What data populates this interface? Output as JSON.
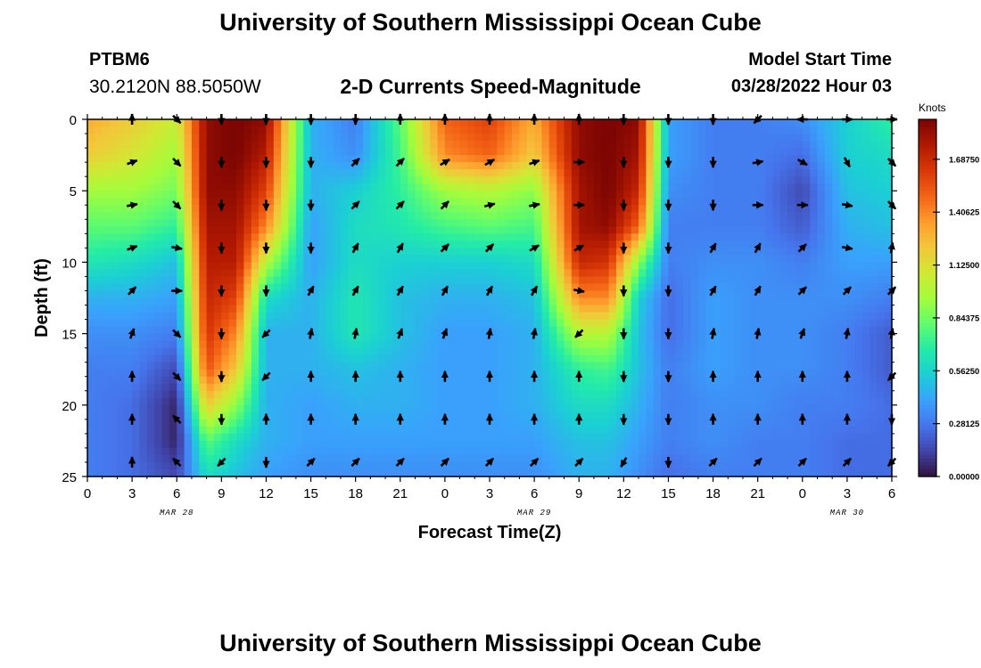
{
  "header": {
    "title": "University of Southern Mississippi Ocean Cube",
    "station": "PTBM6",
    "coords": "30.2120N  88.5050W",
    "subtitle": "2-D Currents Speed-Magnitude",
    "model_start_label": "Model Start Time",
    "model_start_value": "03/28/2022 Hour 03"
  },
  "footer": {
    "title": "University of Southern Mississippi Ocean Cube"
  },
  "chart_data": {
    "type": "heatmap",
    "title": "2-D Currents Speed-Magnitude",
    "xlabel": "Forecast Time(Z)",
    "ylabel": "Depth (ft)",
    "x_ticks": [
      "0",
      "3",
      "6",
      "9",
      "12",
      "15",
      "18",
      "21",
      "0",
      "3",
      "6",
      "9",
      "12",
      "15",
      "18",
      "21",
      "0",
      "3",
      "6"
    ],
    "y_ticks": [
      "0",
      "5",
      "10",
      "15",
      "20",
      "25"
    ],
    "date_labels": [
      {
        "text": "MAR 28",
        "hour_index": 6
      },
      {
        "text": "MAR 29",
        "hour_index": 30
      },
      {
        "text": "MAR 30",
        "hour_index": 51
      }
    ],
    "hour_range": [
      0,
      54
    ],
    "ylim": [
      0,
      25
    ],
    "colorbar": {
      "label": "Knots",
      "range": [
        0,
        1.9
      ],
      "ticks": [
        "1.68750",
        "1.40625",
        "1.12500",
        "0.84375",
        "0.56250",
        "0.28125",
        "0.00000"
      ],
      "tick_values": [
        1.6875,
        1.40625,
        1.125,
        0.84375,
        0.5625,
        0.28125,
        0.0
      ],
      "colors": [
        "#30123b",
        "#4145ab",
        "#4675ed",
        "#39a2fc",
        "#1bcfd4",
        "#24eca6",
        "#61fc6c",
        "#a4fc3b",
        "#d1e834",
        "#f3c63a",
        "#fe9b2d",
        "#f36315",
        "#d93807",
        "#b11901",
        "#7a0403"
      ]
    },
    "speed_depth_grid": [
      0,
      2.5,
      5,
      7.5,
      10,
      12.5,
      15,
      17.5,
      20,
      22.5,
      25
    ],
    "speed_hour_grid": [
      0,
      3,
      6,
      8,
      10,
      12,
      15,
      18,
      21,
      24,
      27,
      30,
      33,
      35,
      37,
      39,
      42,
      45,
      48,
      51,
      54
    ],
    "speed": [
      [
        1.3,
        1.2,
        1.05,
        1.85,
        1.9,
        1.85,
        0.45,
        0.3,
        0.8,
        1.5,
        1.6,
        1.3,
        1.85,
        1.9,
        1.85,
        0.4,
        0.3,
        0.3,
        0.35,
        0.55,
        0.7
      ],
      [
        1.2,
        1.1,
        0.95,
        1.85,
        1.9,
        1.75,
        0.45,
        0.35,
        0.75,
        1.4,
        1.5,
        1.2,
        1.85,
        1.9,
        1.8,
        0.4,
        0.3,
        0.3,
        0.25,
        0.55,
        0.6
      ],
      [
        0.95,
        0.95,
        0.85,
        1.85,
        1.85,
        1.6,
        0.45,
        0.55,
        0.7,
        0.95,
        1.0,
        0.9,
        1.8,
        1.9,
        1.7,
        0.35,
        0.3,
        0.3,
        0.15,
        0.5,
        0.55
      ],
      [
        0.8,
        0.8,
        0.7,
        1.8,
        1.8,
        1.4,
        0.4,
        0.6,
        0.65,
        0.75,
        0.8,
        0.75,
        1.8,
        1.85,
        1.5,
        0.3,
        0.3,
        0.3,
        0.2,
        0.45,
        0.5
      ],
      [
        0.65,
        0.6,
        0.5,
        1.75,
        1.75,
        1.0,
        0.4,
        0.6,
        0.55,
        0.55,
        0.55,
        0.6,
        1.7,
        1.65,
        0.9,
        0.3,
        0.35,
        0.35,
        0.3,
        0.4,
        0.4
      ],
      [
        0.45,
        0.45,
        0.4,
        1.7,
        1.6,
        0.6,
        0.45,
        0.65,
        0.5,
        0.45,
        0.45,
        0.5,
        1.4,
        1.4,
        0.55,
        0.25,
        0.4,
        0.35,
        0.35,
        0.35,
        0.3
      ],
      [
        0.35,
        0.35,
        0.3,
        1.65,
        1.4,
        0.45,
        0.45,
        0.65,
        0.5,
        0.4,
        0.4,
        0.45,
        1.0,
        1.0,
        0.5,
        0.25,
        0.4,
        0.35,
        0.35,
        0.3,
        0.2
      ],
      [
        0.3,
        0.3,
        0.15,
        1.55,
        1.2,
        0.45,
        0.45,
        0.5,
        0.45,
        0.4,
        0.4,
        0.45,
        0.7,
        0.75,
        0.5,
        0.3,
        0.4,
        0.35,
        0.35,
        0.3,
        0.2
      ],
      [
        0.3,
        0.25,
        0.05,
        1.2,
        0.9,
        0.45,
        0.4,
        0.45,
        0.45,
        0.4,
        0.4,
        0.45,
        0.6,
        0.6,
        0.45,
        0.3,
        0.35,
        0.35,
        0.3,
        0.3,
        0.25
      ],
      [
        0.3,
        0.25,
        0.05,
        0.8,
        0.6,
        0.45,
        0.4,
        0.4,
        0.4,
        0.4,
        0.4,
        0.4,
        0.5,
        0.5,
        0.4,
        0.3,
        0.35,
        0.3,
        0.3,
        0.25,
        0.25
      ],
      [
        0.3,
        0.25,
        0.15,
        0.6,
        0.5,
        0.4,
        0.35,
        0.35,
        0.35,
        0.35,
        0.35,
        0.35,
        0.45,
        0.45,
        0.35,
        0.25,
        0.3,
        0.3,
        0.3,
        0.25,
        0.25
      ]
    ],
    "vector_depths": [
      0,
      3,
      6,
      9,
      12,
      15,
      18,
      21,
      24
    ],
    "vector_hours": [
      3,
      6,
      9,
      12,
      15,
      18,
      21,
      24,
      27,
      30,
      33,
      36,
      39,
      42,
      45,
      48,
      51,
      54
    ],
    "vector_dirs_deg": [
      [
        0,
        135,
        180,
        180,
        180,
        180,
        0,
        0,
        0,
        0,
        0,
        180,
        180,
        180,
        225,
        270,
        90,
        90
      ],
      [
        70,
        135,
        180,
        180,
        180,
        45,
        45,
        60,
        60,
        70,
        90,
        180,
        180,
        180,
        80,
        120,
        150,
        135
      ],
      [
        80,
        135,
        180,
        180,
        180,
        45,
        45,
        45,
        75,
        80,
        90,
        180,
        180,
        180,
        90,
        90,
        100,
        135
      ],
      [
        70,
        100,
        180,
        180,
        180,
        30,
        30,
        45,
        45,
        60,
        60,
        180,
        180,
        30,
        30,
        45,
        100,
        10
      ],
      [
        45,
        90,
        180,
        180,
        30,
        30,
        30,
        30,
        30,
        30,
        100,
        180,
        180,
        30,
        30,
        45,
        45,
        45
      ],
      [
        20,
        135,
        180,
        225,
        10,
        10,
        20,
        20,
        10,
        10,
        225,
        180,
        180,
        10,
        10,
        20,
        10,
        10
      ],
      [
        0,
        135,
        180,
        225,
        0,
        0,
        0,
        0,
        0,
        0,
        0,
        180,
        180,
        0,
        0,
        0,
        0,
        225
      ],
      [
        0,
        315,
        180,
        0,
        0,
        0,
        0,
        0,
        0,
        0,
        0,
        180,
        180,
        0,
        0,
        0,
        0,
        180
      ],
      [
        0,
        315,
        225,
        180,
        45,
        45,
        45,
        45,
        45,
        45,
        45,
        210,
        180,
        45,
        45,
        45,
        45,
        225
      ]
    ]
  }
}
